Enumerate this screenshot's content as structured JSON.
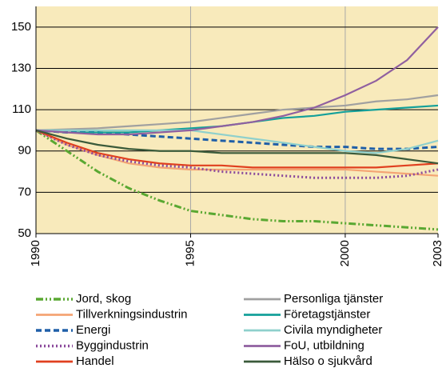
{
  "chart_data": {
    "type": "line",
    "x": [
      1990,
      1991,
      1992,
      1993,
      1994,
      1995,
      1996,
      1997,
      1998,
      1999,
      2000,
      2001,
      2002,
      2003
    ],
    "xlim": [
      1990,
      2003
    ],
    "xticks": [
      1990,
      1995,
      2000,
      2003
    ],
    "ylim": [
      50,
      160
    ],
    "yticks": [
      50,
      70,
      90,
      110,
      130,
      150
    ],
    "grid": true,
    "series": [
      {
        "name": "Jord, skog",
        "color": "#5aa832",
        "dash": "dashdotdot",
        "values": [
          100,
          90,
          80,
          72,
          66,
          61,
          59,
          57,
          56,
          56,
          55,
          54,
          53,
          52
        ]
      },
      {
        "name": "Tillverkningsindustrin",
        "color": "#f4a474",
        "dash": "solid",
        "values": [
          100,
          93,
          88,
          84,
          82,
          81,
          81,
          81,
          81,
          81,
          81,
          80,
          79,
          78
        ]
      },
      {
        "name": "Energi",
        "color": "#1f5fa8",
        "dash": "dashed",
        "values": [
          100,
          99,
          99,
          98,
          97,
          96,
          95,
          94,
          93,
          92,
          92,
          91,
          91,
          92
        ]
      },
      {
        "name": "Byggindustrin",
        "color": "#8b4a9c",
        "dash": "dotted",
        "values": [
          100,
          93,
          88,
          85,
          83,
          82,
          80,
          79,
          78,
          77,
          77,
          77,
          78,
          81
        ]
      },
      {
        "name": "Handel",
        "color": "#e0401f",
        "dash": "solid",
        "values": [
          100,
          94,
          89,
          86,
          84,
          83,
          83,
          82,
          82,
          82,
          82,
          82,
          83,
          84
        ]
      },
      {
        "name": "Personliga tjänster",
        "color": "#a0a0a0",
        "dash": "solid",
        "values": [
          100,
          100.5,
          101,
          102,
          103,
          104,
          106,
          108,
          110,
          111,
          112,
          114,
          115,
          117
        ]
      },
      {
        "name": "Företagstjänster",
        "color": "#14a09a",
        "dash": "solid",
        "values": [
          100,
          99,
          99,
          99,
          100,
          101,
          102,
          104,
          106,
          107,
          109,
          110,
          111,
          112
        ]
      },
      {
        "name": "Civila myndigheter",
        "color": "#8fd0cc",
        "dash": "solid",
        "values": [
          100,
          100,
          100,
          100,
          100,
          100,
          98,
          96,
          94,
          92,
          90,
          89,
          91,
          95
        ]
      },
      {
        "name": "FoU, utbildning",
        "color": "#9060a0",
        "dash": "solid",
        "values": [
          100,
          99,
          98,
          98,
          99,
          100,
          102,
          104,
          107,
          111,
          117,
          124,
          134,
          150
        ]
      },
      {
        "name": "Hälso o sjukvård",
        "color": "#3a5a3a",
        "dash": "solid",
        "values": [
          100,
          96,
          93,
          91,
          90,
          90,
          89,
          89,
          89,
          89,
          89,
          88,
          86,
          84
        ]
      }
    ]
  }
}
